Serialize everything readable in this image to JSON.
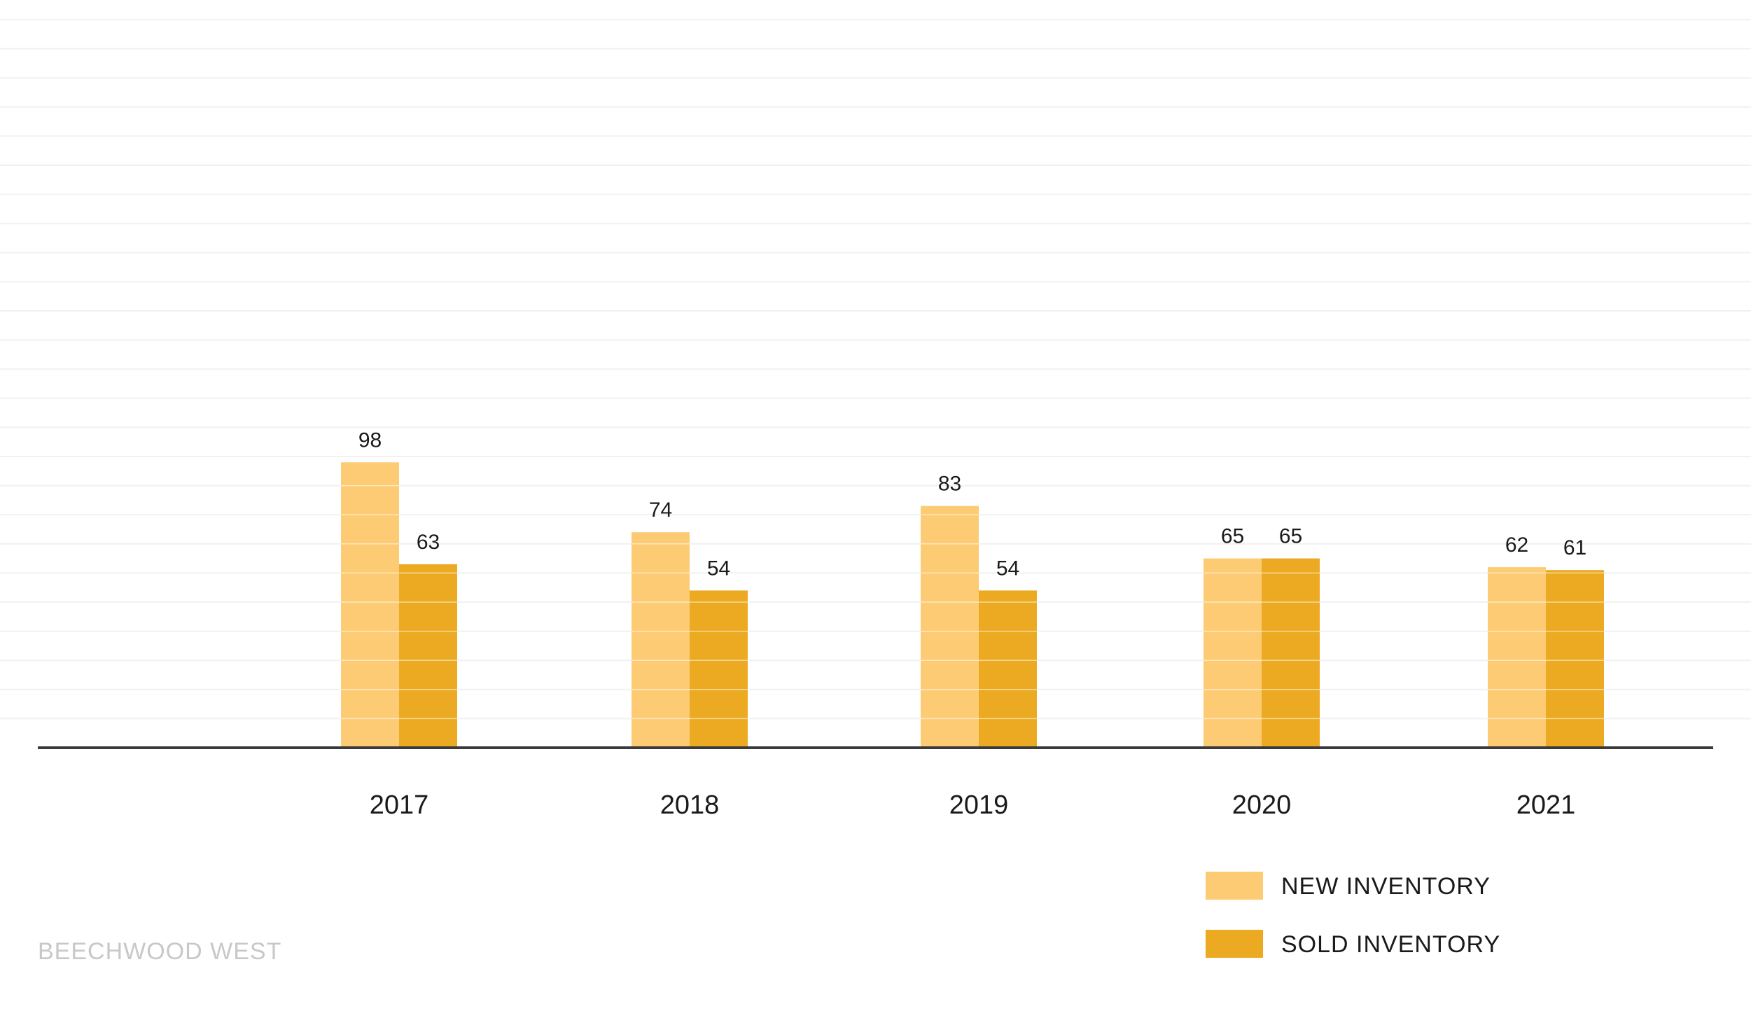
{
  "chart_data": {
    "type": "bar",
    "categories": [
      "2017",
      "2018",
      "2019",
      "2020",
      "2021"
    ],
    "series": [
      {
        "name": "NEW INVENTORY",
        "values": [
          98,
          74,
          83,
          65,
          62
        ],
        "color": "#FDCB73"
      },
      {
        "name": "SOLD INVENTORY",
        "values": [
          63,
          54,
          54,
          65,
          61
        ],
        "color": "#EBAA21"
      }
    ],
    "ylim": [
      0,
      250
    ],
    "grid": true,
    "legend_position": "bottom-right",
    "colors": {
      "gridline": "#f1f1f1",
      "axis": "#3a3a3a",
      "bar_separator": "#ffffff"
    }
  },
  "watermark": "BEECHWOOD WEST"
}
